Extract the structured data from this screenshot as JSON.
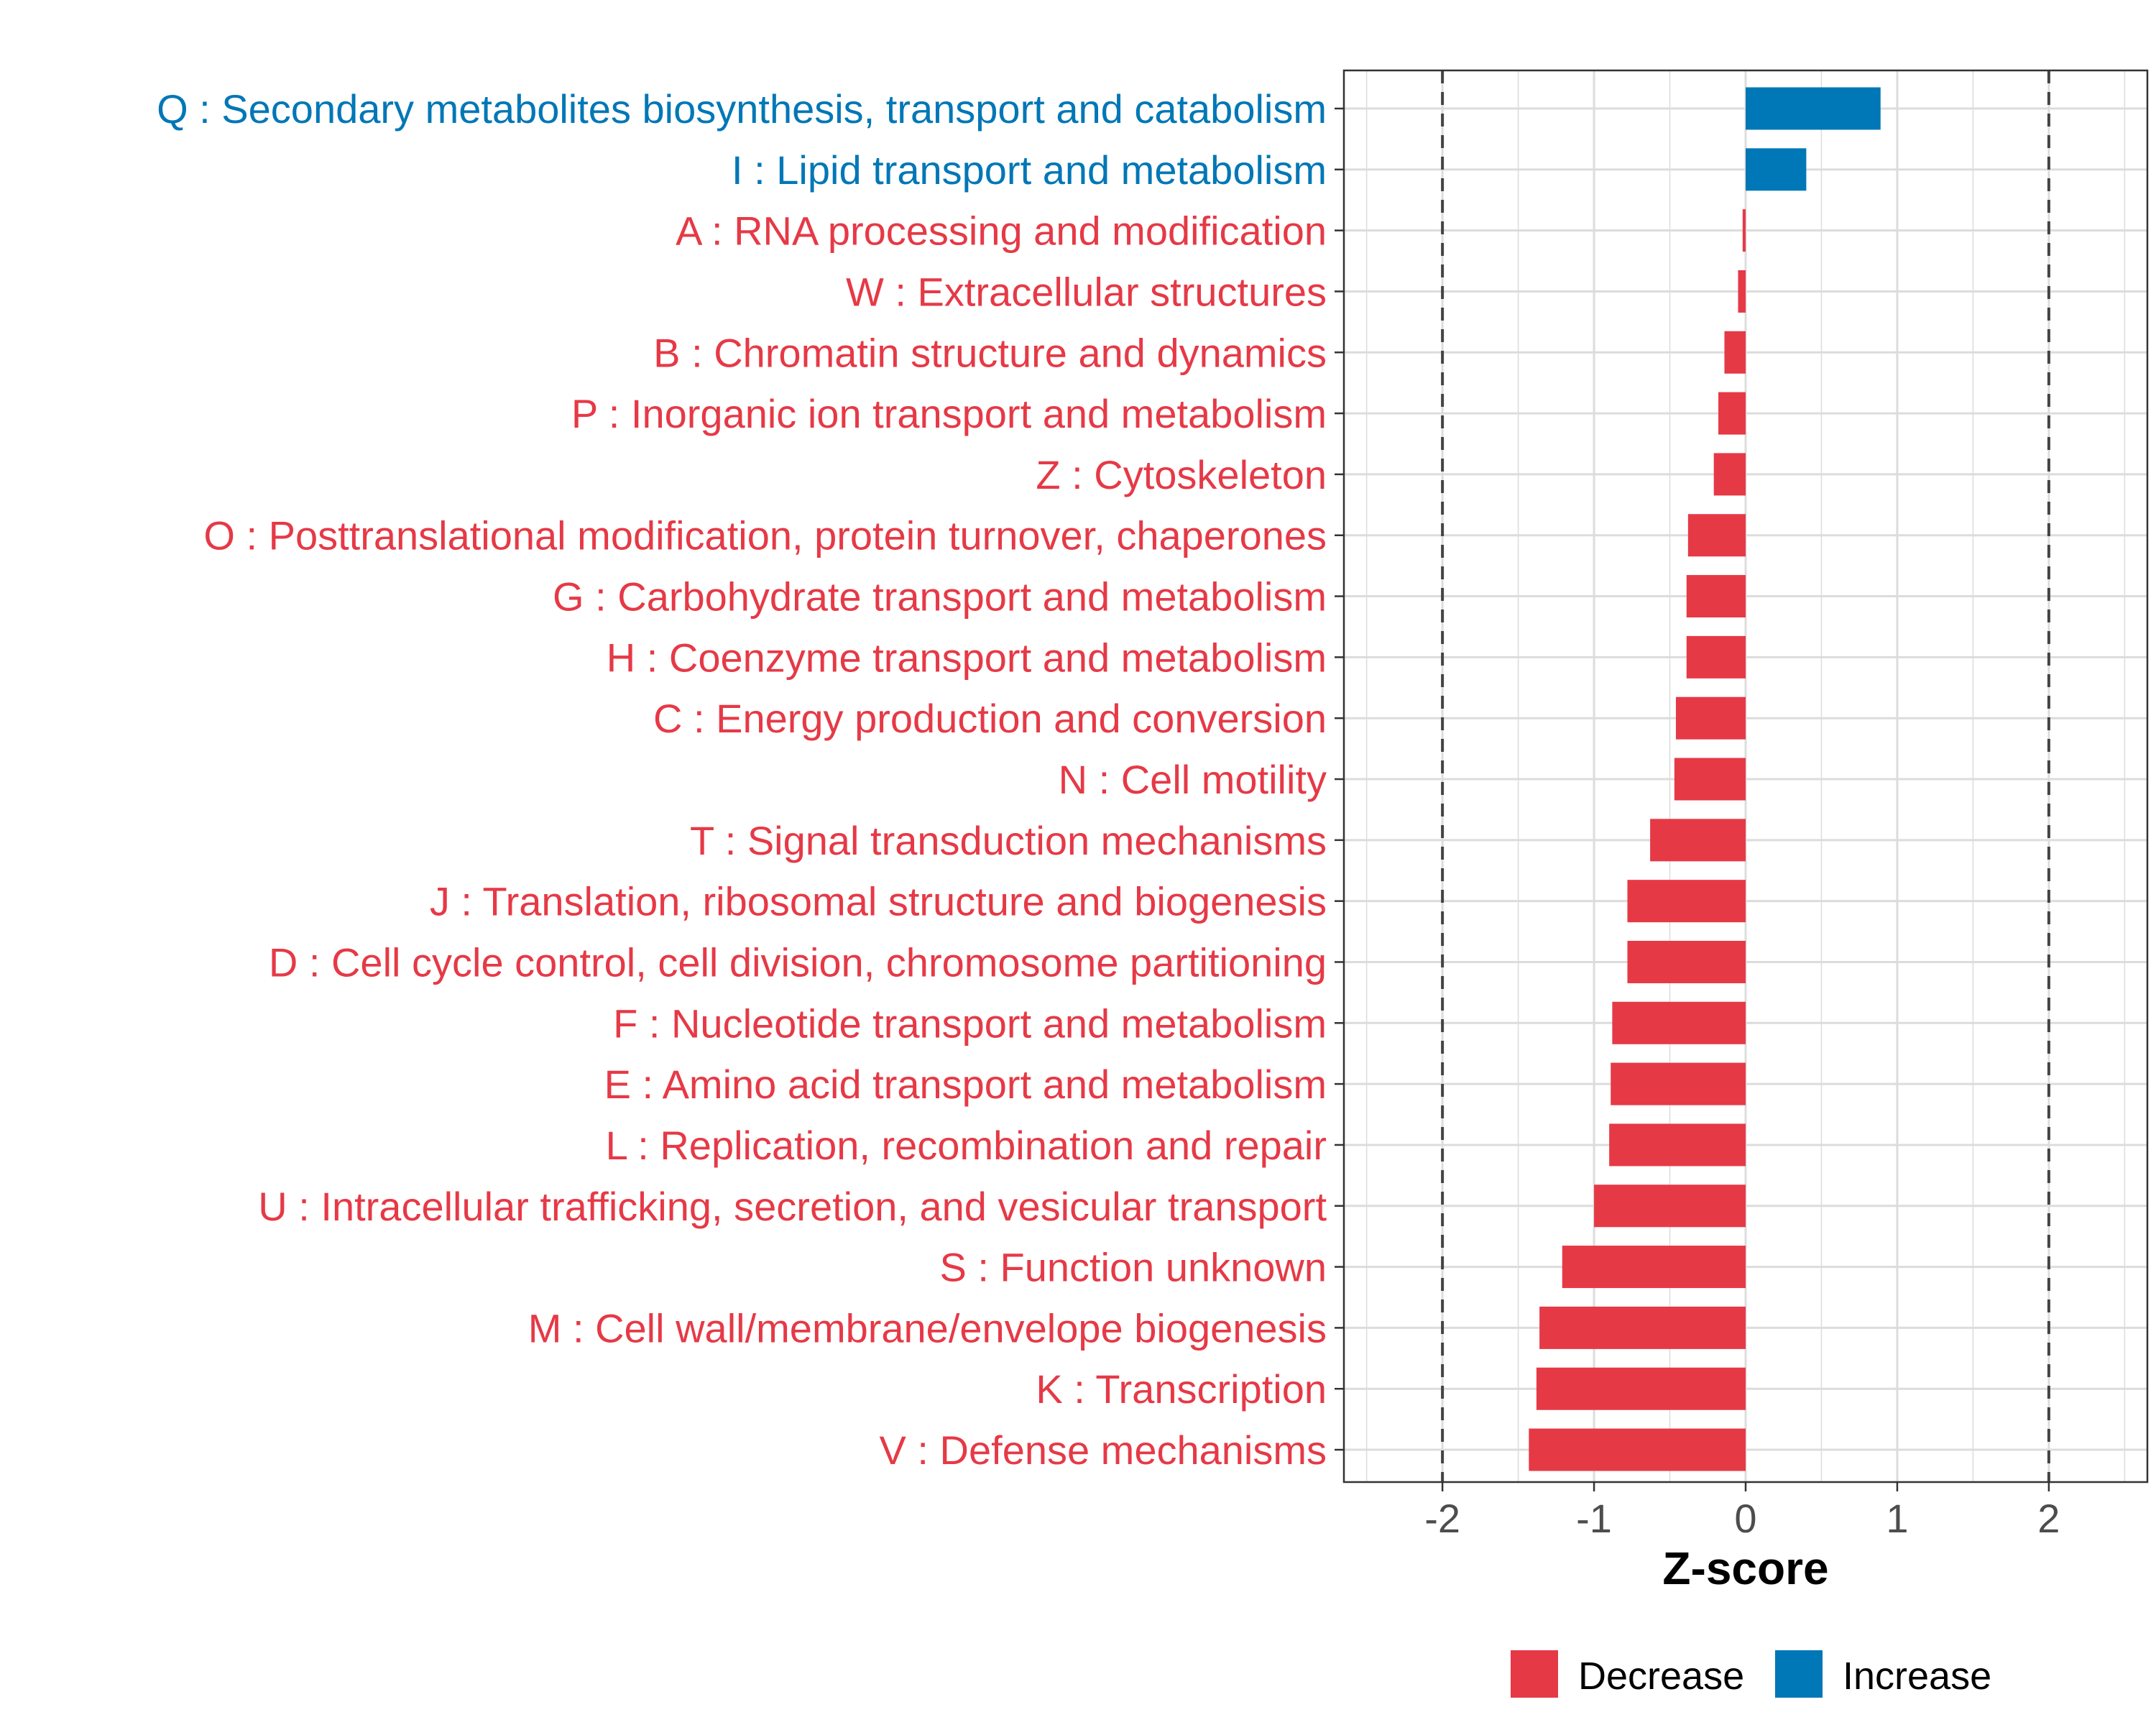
{
  "chart_data": {
    "type": "bar",
    "orientation": "horizontal",
    "title": "",
    "xlabel": "Z-score",
    "ylabel": "",
    "xlim": [
      -2.65,
      2.65
    ],
    "xticks": [
      -2,
      -1,
      0,
      1,
      2
    ],
    "xtick_labels": [
      "-2",
      "-1",
      "0",
      "1",
      "2"
    ],
    "reference_lines": [
      -2,
      2
    ],
    "grid": true,
    "legend_position": "bottom",
    "colors": {
      "Decrease": "#e63946",
      "Increase": "#0077b6"
    },
    "legend": [
      {
        "name": "Decrease",
        "color": "#e63946"
      },
      {
        "name": "Increase",
        "color": "#0077b6"
      }
    ],
    "categories": [
      "Q : Secondary metabolites biosynthesis, transport and catabolism",
      "I : Lipid transport and metabolism",
      "A : RNA processing and modification",
      "W : Extracellular structures",
      "B : Chromatin structure and dynamics",
      "P : Inorganic ion transport and metabolism",
      "Z : Cytoskeleton",
      "O : Posttranslational modification, protein turnover, chaperones",
      "G : Carbohydrate transport and metabolism",
      "H : Coenzyme transport and metabolism",
      "C : Energy production and conversion",
      "N : Cell motility",
      "T : Signal transduction mechanisms",
      "J : Translation, ribosomal structure and biogenesis",
      "D : Cell cycle control, cell division, chromosome partitioning",
      "F : Nucleotide transport and metabolism",
      "E : Amino acid transport and metabolism",
      "L : Replication, recombination and repair",
      "U : Intracellular trafficking, secretion, and vesicular transport",
      "S : Function unknown",
      "M : Cell wall/membrane/envelope biogenesis",
      "K : Transcription",
      "V : Defense mechanisms"
    ],
    "values": [
      0.89,
      0.4,
      -0.02,
      -0.05,
      -0.14,
      -0.18,
      -0.21,
      -0.38,
      -0.39,
      -0.39,
      -0.46,
      -0.47,
      -0.63,
      -0.78,
      -0.78,
      -0.88,
      -0.89,
      -0.9,
      -1.0,
      -1.21,
      -1.36,
      -1.38,
      -1.43
    ],
    "groups": [
      "Increase",
      "Increase",
      "Decrease",
      "Decrease",
      "Decrease",
      "Decrease",
      "Decrease",
      "Decrease",
      "Decrease",
      "Decrease",
      "Decrease",
      "Decrease",
      "Decrease",
      "Decrease",
      "Decrease",
      "Decrease",
      "Decrease",
      "Decrease",
      "Decrease",
      "Decrease",
      "Decrease",
      "Decrease",
      "Decrease"
    ]
  }
}
